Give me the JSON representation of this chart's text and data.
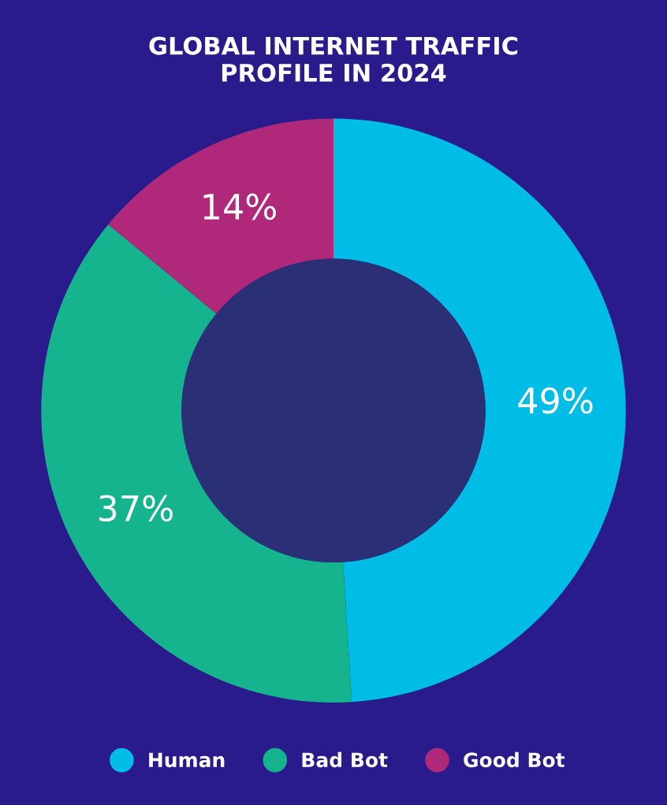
{
  "chart_data": {
    "type": "donut",
    "title": "GLOBAL INTERNET TRAFFIC\nPROFILE IN 2024",
    "categories": [
      "Human",
      "Bad Bot",
      "Good Bot"
    ],
    "values": [
      49,
      37,
      14
    ],
    "colors": [
      "#00bde8",
      "#16b48e",
      "#b0287a"
    ],
    "value_labels": [
      "49%",
      "37%",
      "14%"
    ],
    "legend": "bottom"
  }
}
